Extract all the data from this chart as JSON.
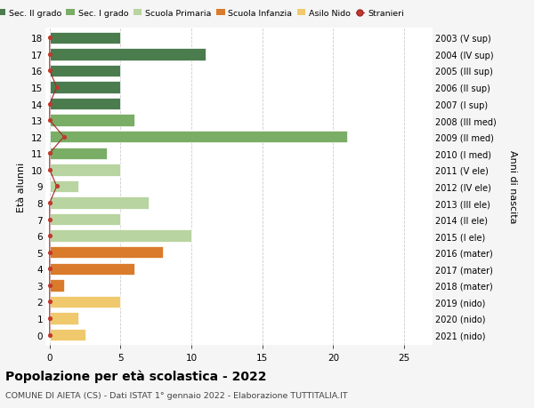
{
  "ages": [
    18,
    17,
    16,
    15,
    14,
    13,
    12,
    11,
    10,
    9,
    8,
    7,
    6,
    5,
    4,
    3,
    2,
    1,
    0
  ],
  "right_labels": [
    "2003 (V sup)",
    "2004 (IV sup)",
    "2005 (III sup)",
    "2006 (II sup)",
    "2007 (I sup)",
    "2008 (III med)",
    "2009 (II med)",
    "2010 (I med)",
    "2011 (V ele)",
    "2012 (IV ele)",
    "2013 (III ele)",
    "2014 (II ele)",
    "2015 (I ele)",
    "2016 (mater)",
    "2017 (mater)",
    "2018 (mater)",
    "2019 (nido)",
    "2020 (nido)",
    "2021 (nido)"
  ],
  "bar_values": [
    5,
    11,
    5,
    5,
    5,
    6,
    21,
    4,
    5,
    2,
    7,
    5,
    10,
    8,
    6,
    1,
    5,
    2,
    2.5
  ],
  "bar_colors": [
    "#4a7c4e",
    "#4a7c4e",
    "#4a7c4e",
    "#4a7c4e",
    "#4a7c4e",
    "#7aad65",
    "#7aad65",
    "#7aad65",
    "#b8d4a0",
    "#b8d4a0",
    "#b8d4a0",
    "#b8d4a0",
    "#b8d4a0",
    "#d97b2b",
    "#d97b2b",
    "#d97b2b",
    "#f0c96c",
    "#f0c96c",
    "#f0c96c"
  ],
  "stranieri_x": [
    0,
    0,
    0,
    0.5,
    0,
    0,
    1,
    0,
    0,
    0.5,
    0,
    0,
    0,
    0,
    0,
    0,
    0,
    0,
    0
  ],
  "legend_labels": [
    "Sec. II grado",
    "Sec. I grado",
    "Scuola Primaria",
    "Scuola Infanzia",
    "Asilo Nido",
    "Stranieri"
  ],
  "legend_colors": [
    "#4a7c4e",
    "#7aad65",
    "#b8d4a0",
    "#d97b2b",
    "#f0c96c",
    "#c0392b"
  ],
  "title": "Popolazione per età scolastica - 2022",
  "subtitle": "COMUNE DI AIETA (CS) - Dati ISTAT 1° gennaio 2022 - Elaborazione TUTTITALIA.IT",
  "ylabel_left": "Età alunni",
  "ylabel_right": "Anni di nascita",
  "xlim": [
    -0.3,
    27
  ],
  "xticks": [
    0,
    5,
    10,
    15,
    20,
    25
  ],
  "ylim": [
    -0.6,
    18.6
  ],
  "bg_color": "#f5f5f5",
  "plot_bg_color": "#ffffff",
  "grid_color": "#cccccc",
  "stranieri_line_color": "#a0252a",
  "stranieri_dot_color": "#c0392b",
  "bar_height": 0.72
}
